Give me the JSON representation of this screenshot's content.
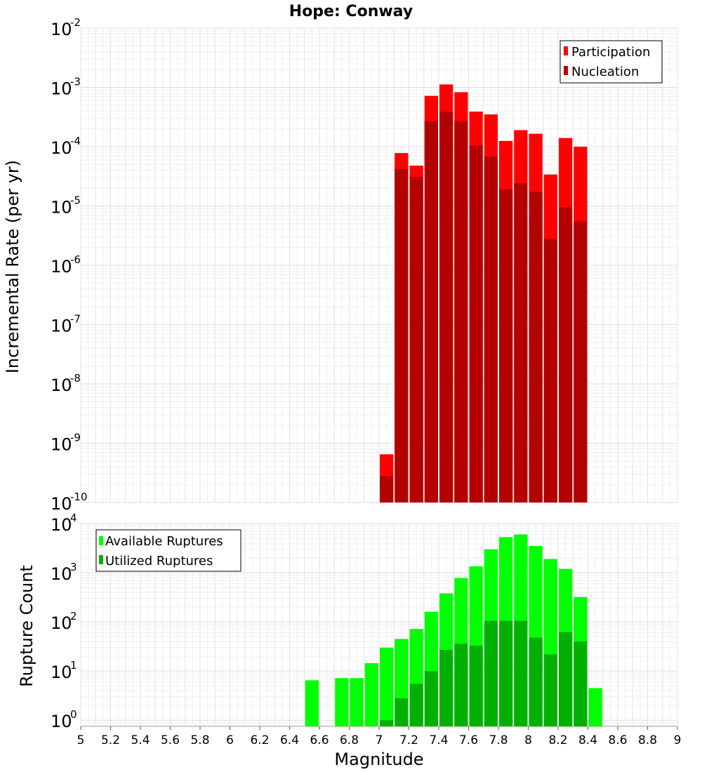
{
  "chart_data": [
    {
      "type": "bar",
      "title": "Hope: Conway",
      "ylabel": "Incremental Rate (per yr)",
      "xlabel": "",
      "yscale": "log",
      "ylim": [
        1e-10,
        0.01
      ],
      "xlim": [
        5,
        9
      ],
      "bin_width": 0.1,
      "x": [
        7.05,
        7.15,
        7.25,
        7.35,
        7.45,
        7.55,
        7.65,
        7.75,
        7.85,
        7.95,
        8.05,
        8.15,
        8.25,
        8.35
      ],
      "series": [
        {
          "name": "Participation",
          "color": "#ff0000",
          "values": [
            6.5e-10,
            7.8e-05,
            4.8e-05,
            0.00072,
            0.00112,
            0.00083,
            0.00039,
            0.00035,
            0.000125,
            0.00019,
            0.000165,
            3.4e-05,
            0.00014,
            0.0001
          ]
        },
        {
          "name": "Nucleation",
          "color": "#b30000",
          "values": [
            2.8e-10,
            4.2e-05,
            3.1e-05,
            0.00027,
            0.00039,
            0.00027,
            0.000105,
            6.8e-05,
            1.9e-05,
            2.4e-05,
            1.75e-05,
            2.8e-06,
            9.5e-06,
            5.5e-06
          ]
        }
      ],
      "legend": "top-right",
      "grid": true
    },
    {
      "type": "bar",
      "title": "",
      "ylabel": "Rupture Count",
      "xlabel": "Magnitude",
      "yscale": "log",
      "ylim": [
        0.75,
        10000
      ],
      "xlim": [
        5,
        9
      ],
      "bin_width": 0.1,
      "x": [
        6.55,
        6.75,
        6.85,
        6.95,
        7.05,
        7.15,
        7.25,
        7.35,
        7.45,
        7.55,
        7.65,
        7.75,
        7.85,
        7.95,
        8.05,
        8.15,
        8.25,
        8.35,
        8.45
      ],
      "series": [
        {
          "name": "Available Ruptures",
          "color": "#00ff00",
          "values": [
            6.5,
            7.2,
            7.2,
            14.5,
            30,
            45,
            72,
            160,
            380,
            780,
            1350,
            3000,
            5300,
            6000,
            3500,
            1900,
            1200,
            320,
            4.5
          ]
        },
        {
          "name": "Utilized Ruptures",
          "color": "#00b000",
          "values": [
            0,
            0,
            0,
            0,
            1,
            2.8,
            5.5,
            10,
            27,
            36,
            33,
            105,
            105,
            105,
            48,
            22,
            62,
            40,
            0
          ]
        }
      ],
      "legend": "top-left",
      "grid": true,
      "x_ticks": [
        "5",
        "5.2",
        "5.4",
        "5.6",
        "5.8",
        "6",
        "6.2",
        "6.4",
        "6.6",
        "6.8",
        "7",
        "7.2",
        "7.4",
        "7.6",
        "7.8",
        "8",
        "8.2",
        "8.4",
        "8.6",
        "8.8",
        "9"
      ]
    }
  ]
}
